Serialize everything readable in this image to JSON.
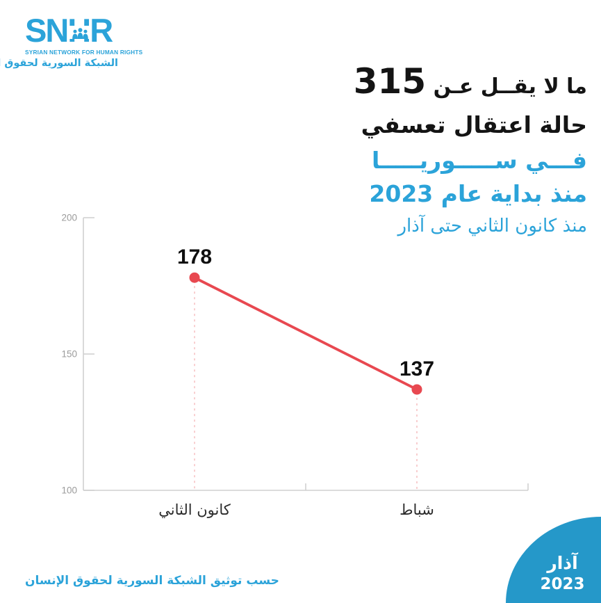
{
  "logo": {
    "acronym": "SNHR",
    "name_en": "SYRIAN NETWORK FOR HUMAN RIGHTS",
    "name_ar": "الشبكة السورية لحقوق الإنسان"
  },
  "headline": {
    "line1_prefix": "ما لا يقــل عـن",
    "line1_number": "315",
    "line2": "حالة اعتقال تعسفي",
    "line3": "فـــي ســـــوريـــــا",
    "line4": "منذ بداية عام 2023",
    "line5": "منذ كانون الثاني حتى آذار"
  },
  "chart_data": {
    "type": "line",
    "categories": [
      "كانون الثاني",
      "شباط"
    ],
    "values": [
      178,
      137
    ],
    "yticks": [
      100,
      150,
      200
    ],
    "ylim": [
      100,
      200
    ],
    "grid": false,
    "legend": false,
    "line_color": "#e84850",
    "marker": "circle",
    "guide_lines": "dashed vertical from each point to x-axis"
  },
  "footer": {
    "source": "حسب توثيق الشبكة السورية لحقوق الإنسان"
  },
  "badge": {
    "month": "آذار",
    "year": "2023"
  },
  "colors": {
    "accent_blue": "#2ba3d9",
    "badge_blue": "#2598c9",
    "line_red": "#e84850",
    "guide_pink": "#f5bdbf",
    "axis_gray": "#d0d0d0",
    "tick_text_gray": "#9b9b9b",
    "label_black": "#141414"
  }
}
